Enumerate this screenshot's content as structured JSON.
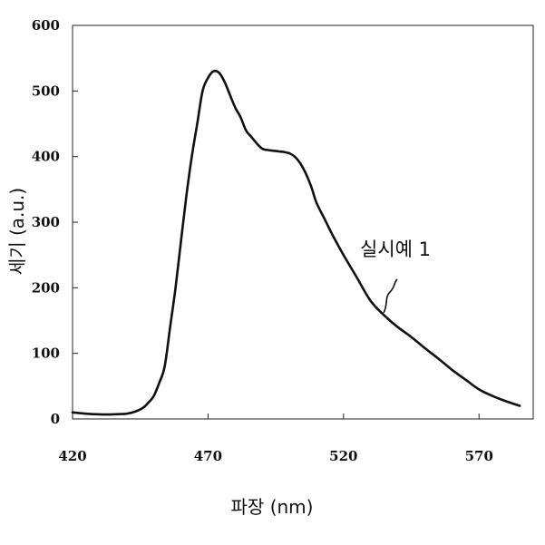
{
  "chart_data": {
    "type": "line",
    "title": "",
    "xlabel": "파장 (nm)",
    "ylabel": "세기 (a.u.)",
    "xlim": [
      420,
      590
    ],
    "ylim": [
      0,
      600
    ],
    "xticks": [
      420,
      470,
      520,
      570
    ],
    "yticks": [
      0,
      100,
      200,
      300,
      400,
      500,
      600
    ],
    "grid": false,
    "series": [
      {
        "name": "실시예 1",
        "color": "#111111",
        "x": [
          420,
          425,
          430,
          435,
          440,
          443,
          446,
          448,
          450,
          452,
          454,
          456,
          458,
          460,
          462,
          464,
          466,
          468,
          470,
          472,
          474,
          476,
          478,
          480,
          482,
          484,
          486,
          488,
          490,
          492,
          494,
          496,
          498,
          500,
          502,
          504,
          506,
          508,
          510,
          513,
          516,
          520,
          525,
          530,
          535,
          540,
          545,
          550,
          555,
          560,
          565,
          570,
          575,
          580,
          585
        ],
        "y": [
          10,
          8,
          7,
          7,
          8,
          11,
          17,
          25,
          35,
          55,
          80,
          140,
          200,
          270,
          340,
          400,
          450,
          500,
          520,
          530,
          528,
          515,
          495,
          475,
          460,
          440,
          430,
          420,
          412,
          410,
          409,
          408,
          407,
          405,
          400,
          390,
          375,
          355,
          330,
          305,
          280,
          250,
          215,
          180,
          158,
          140,
          125,
          108,
          92,
          75,
          60,
          45,
          35,
          27,
          20
        ]
      }
    ]
  },
  "annotation": {
    "label": "실시예 1"
  }
}
